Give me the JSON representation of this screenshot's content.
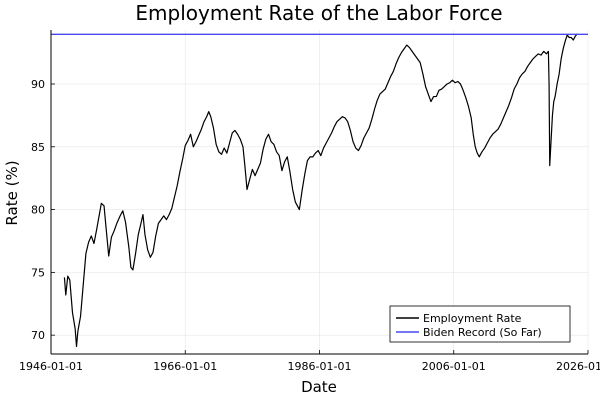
{
  "chart_data": {
    "type": "line",
    "title": "Employment Rate of the Labor Force",
    "xlabel": "Date",
    "ylabel": "Rate (%)",
    "xlim": [
      1946.0,
      2026.0
    ],
    "ylim": [
      68.5,
      94.3
    ],
    "x_ticks": [
      1946,
      1966,
      1986,
      2006,
      2026
    ],
    "x_tick_labels": [
      "1946-01-01",
      "1966-01-01",
      "1986-01-01",
      "2006-01-01",
      "2026-01-01"
    ],
    "y_ticks": [
      70,
      75,
      80,
      85,
      90
    ],
    "y_tick_labels": [
      "70",
      "75",
      "80",
      "85",
      "90"
    ],
    "grid": true,
    "legend_position": "bottom-right",
    "series": [
      {
        "name": "Employment Rate",
        "color": "#000000",
        "points": [
          [
            1948.0,
            74.6
          ],
          [
            1948.2,
            73.2
          ],
          [
            1948.5,
            74.7
          ],
          [
            1948.8,
            74.4
          ],
          [
            1949.2,
            71.8
          ],
          [
            1949.6,
            70.5
          ],
          [
            1949.8,
            69.1
          ],
          [
            1950.0,
            70.3
          ],
          [
            1950.4,
            71.5
          ],
          [
            1950.8,
            74.0
          ],
          [
            1951.2,
            76.5
          ],
          [
            1951.6,
            77.4
          ],
          [
            1952.0,
            77.9
          ],
          [
            1952.4,
            77.3
          ],
          [
            1952.8,
            78.4
          ],
          [
            1953.2,
            79.6
          ],
          [
            1953.5,
            80.5
          ],
          [
            1953.9,
            80.3
          ],
          [
            1954.3,
            78.0
          ],
          [
            1954.6,
            76.3
          ],
          [
            1955.0,
            77.8
          ],
          [
            1955.4,
            78.3
          ],
          [
            1955.8,
            78.9
          ],
          [
            1956.3,
            79.5
          ],
          [
            1956.7,
            79.9
          ],
          [
            1957.1,
            79.0
          ],
          [
            1957.6,
            77.0
          ],
          [
            1957.9,
            75.4
          ],
          [
            1958.2,
            75.2
          ],
          [
            1958.6,
            76.5
          ],
          [
            1959.0,
            78.0
          ],
          [
            1959.4,
            78.9
          ],
          [
            1959.7,
            79.6
          ],
          [
            1960.0,
            78.0
          ],
          [
            1960.4,
            76.8
          ],
          [
            1960.8,
            76.2
          ],
          [
            1961.2,
            76.6
          ],
          [
            1961.6,
            77.9
          ],
          [
            1962.0,
            78.9
          ],
          [
            1962.4,
            79.2
          ],
          [
            1962.8,
            79.5
          ],
          [
            1963.2,
            79.2
          ],
          [
            1963.6,
            79.6
          ],
          [
            1964.0,
            80.1
          ],
          [
            1964.4,
            81.0
          ],
          [
            1964.8,
            81.9
          ],
          [
            1965.2,
            83.0
          ],
          [
            1965.6,
            84.0
          ],
          [
            1966.0,
            85.1
          ],
          [
            1966.4,
            85.5
          ],
          [
            1966.8,
            86.0
          ],
          [
            1967.2,
            85.0
          ],
          [
            1967.6,
            85.4
          ],
          [
            1968.0,
            85.9
          ],
          [
            1968.4,
            86.4
          ],
          [
            1968.8,
            87.0
          ],
          [
            1969.2,
            87.4
          ],
          [
            1969.5,
            87.8
          ],
          [
            1969.8,
            87.4
          ],
          [
            1970.2,
            86.5
          ],
          [
            1970.6,
            85.2
          ],
          [
            1971.0,
            84.6
          ],
          [
            1971.4,
            84.4
          ],
          [
            1971.8,
            84.9
          ],
          [
            1972.2,
            84.5
          ],
          [
            1972.6,
            85.3
          ],
          [
            1973.0,
            86.1
          ],
          [
            1973.4,
            86.3
          ],
          [
            1973.8,
            86.0
          ],
          [
            1974.2,
            85.6
          ],
          [
            1974.6,
            85.0
          ],
          [
            1974.9,
            83.4
          ],
          [
            1975.2,
            81.6
          ],
          [
            1975.6,
            82.4
          ],
          [
            1976.0,
            83.2
          ],
          [
            1976.4,
            82.7
          ],
          [
            1976.8,
            83.2
          ],
          [
            1977.2,
            83.7
          ],
          [
            1977.6,
            84.8
          ],
          [
            1978.0,
            85.6
          ],
          [
            1978.4,
            86.0
          ],
          [
            1978.8,
            85.4
          ],
          [
            1979.2,
            85.2
          ],
          [
            1979.6,
            84.6
          ],
          [
            1980.0,
            84.3
          ],
          [
            1980.4,
            83.1
          ],
          [
            1980.8,
            83.8
          ],
          [
            1981.2,
            84.2
          ],
          [
            1981.6,
            83.0
          ],
          [
            1982.0,
            81.6
          ],
          [
            1982.4,
            80.6
          ],
          [
            1982.8,
            80.2
          ],
          [
            1983.0,
            80.0
          ],
          [
            1983.4,
            81.5
          ],
          [
            1983.8,
            82.8
          ],
          [
            1984.2,
            83.9
          ],
          [
            1984.6,
            84.2
          ],
          [
            1985.0,
            84.2
          ],
          [
            1985.4,
            84.5
          ],
          [
            1985.8,
            84.7
          ],
          [
            1986.2,
            84.3
          ],
          [
            1986.6,
            84.9
          ],
          [
            1987.0,
            85.3
          ],
          [
            1987.4,
            85.7
          ],
          [
            1987.8,
            86.1
          ],
          [
            1988.2,
            86.6
          ],
          [
            1988.6,
            87.0
          ],
          [
            1989.0,
            87.2
          ],
          [
            1989.4,
            87.4
          ],
          [
            1989.8,
            87.3
          ],
          [
            1990.2,
            87.0
          ],
          [
            1990.6,
            86.3
          ],
          [
            1991.0,
            85.4
          ],
          [
            1991.4,
            84.9
          ],
          [
            1991.8,
            84.7
          ],
          [
            1992.2,
            85.1
          ],
          [
            1992.6,
            85.7
          ],
          [
            1993.0,
            86.1
          ],
          [
            1993.4,
            86.5
          ],
          [
            1993.8,
            87.2
          ],
          [
            1994.2,
            88.0
          ],
          [
            1994.6,
            88.7
          ],
          [
            1995.0,
            89.2
          ],
          [
            1995.4,
            89.4
          ],
          [
            1995.8,
            89.6
          ],
          [
            1996.2,
            90.1
          ],
          [
            1996.6,
            90.6
          ],
          [
            1997.0,
            91.0
          ],
          [
            1997.4,
            91.6
          ],
          [
            1997.8,
            92.1
          ],
          [
            1998.2,
            92.5
          ],
          [
            1998.6,
            92.8
          ],
          [
            1999.0,
            93.1
          ],
          [
            1999.4,
            92.9
          ],
          [
            1999.8,
            92.6
          ],
          [
            2000.2,
            92.3
          ],
          [
            2000.6,
            92.0
          ],
          [
            2001.0,
            91.7
          ],
          [
            2001.4,
            90.8
          ],
          [
            2001.8,
            89.8
          ],
          [
            2002.2,
            89.2
          ],
          [
            2002.6,
            88.6
          ],
          [
            2003.0,
            89.0
          ],
          [
            2003.4,
            89.0
          ],
          [
            2003.8,
            89.5
          ],
          [
            2004.2,
            89.6
          ],
          [
            2004.6,
            89.8
          ],
          [
            2005.0,
            90.0
          ],
          [
            2005.4,
            90.1
          ],
          [
            2005.8,
            90.3
          ],
          [
            2006.2,
            90.1
          ],
          [
            2006.6,
            90.2
          ],
          [
            2007.0,
            90.0
          ],
          [
            2007.4,
            89.5
          ],
          [
            2007.8,
            88.9
          ],
          [
            2008.2,
            88.2
          ],
          [
            2008.6,
            87.3
          ],
          [
            2008.9,
            86.0
          ],
          [
            2009.2,
            85.0
          ],
          [
            2009.5,
            84.5
          ],
          [
            2009.8,
            84.2
          ],
          [
            2010.2,
            84.6
          ],
          [
            2010.6,
            84.9
          ],
          [
            2011.0,
            85.3
          ],
          [
            2011.4,
            85.7
          ],
          [
            2011.8,
            86.0
          ],
          [
            2012.2,
            86.2
          ],
          [
            2012.6,
            86.4
          ],
          [
            2013.0,
            86.8
          ],
          [
            2013.4,
            87.3
          ],
          [
            2013.8,
            87.8
          ],
          [
            2014.2,
            88.3
          ],
          [
            2014.6,
            88.9
          ],
          [
            2015.0,
            89.6
          ],
          [
            2015.4,
            90.0
          ],
          [
            2015.8,
            90.5
          ],
          [
            2016.2,
            90.8
          ],
          [
            2016.6,
            91.0
          ],
          [
            2017.0,
            91.4
          ],
          [
            2017.4,
            91.7
          ],
          [
            2017.8,
            92.0
          ],
          [
            2018.2,
            92.2
          ],
          [
            2018.6,
            92.4
          ],
          [
            2019.0,
            92.3
          ],
          [
            2019.4,
            92.6
          ],
          [
            2019.8,
            92.4
          ],
          [
            2020.1,
            92.6
          ],
          [
            2020.2,
            90.0
          ],
          [
            2020.3,
            83.5
          ],
          [
            2020.5,
            85.5
          ],
          [
            2020.7,
            87.5
          ],
          [
            2020.9,
            88.6
          ],
          [
            2021.1,
            89.0
          ],
          [
            2021.4,
            90.0
          ],
          [
            2021.7,
            90.8
          ],
          [
            2022.0,
            92.0
          ],
          [
            2022.3,
            92.8
          ],
          [
            2022.6,
            93.4
          ],
          [
            2022.9,
            93.9
          ],
          [
            2023.2,
            93.7
          ],
          [
            2023.5,
            93.7
          ],
          [
            2023.8,
            93.5
          ],
          [
            2024.1,
            93.8
          ],
          [
            2024.4,
            94.0
          ]
        ]
      },
      {
        "name": "Biden Record (So Far)",
        "color": "#4848ee",
        "y": 93.96
      }
    ]
  }
}
